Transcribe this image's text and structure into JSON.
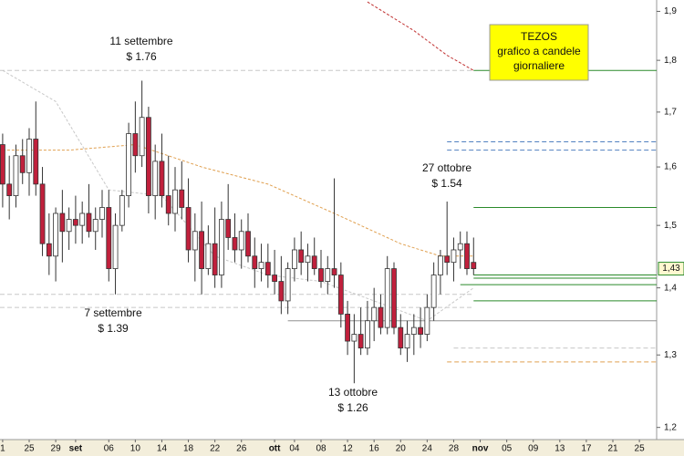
{
  "chart_data": {
    "type": "candlestick",
    "info_box": {
      "lines": [
        "TEZOS",
        "grafico a candele",
        "giornaliere"
      ]
    },
    "annotations": [
      {
        "lines": [
          "11 settembre",
          "$ 1.76"
        ]
      },
      {
        "lines": [
          "7 settembre",
          "$ 1.39"
        ]
      },
      {
        "lines": [
          "13 ottobre",
          "$ 1.26"
        ]
      },
      {
        "lines": [
          "27 ottobre",
          "$ 1.54"
        ]
      }
    ],
    "log_scale": true,
    "grid": false,
    "ylim": [
      1.184,
      1.924
    ],
    "yticks": [
      {
        "value": 1.2,
        "label": "1,2"
      },
      {
        "value": 1.3,
        "label": "1,3"
      },
      {
        "value": 1.4,
        "label": "1,4"
      },
      {
        "value": 1.5,
        "label": "1,5"
      },
      {
        "value": 1.6,
        "label": "1,6"
      },
      {
        "value": 1.7,
        "label": "1,7"
      },
      {
        "value": 1.8,
        "label": "1,8"
      },
      {
        "value": 1.9,
        "label": "1,9"
      }
    ],
    "xlim": [
      -0.4,
      98.6
    ],
    "xticks": [
      {
        "value": 0,
        "label": "1"
      },
      {
        "value": 4,
        "label": "25"
      },
      {
        "value": 8,
        "label": "29"
      },
      {
        "value": 11,
        "label": "set",
        "bold": true
      },
      {
        "value": 16,
        "label": "06"
      },
      {
        "value": 20,
        "label": "10"
      },
      {
        "value": 24,
        "label": "14"
      },
      {
        "value": 28,
        "label": "18"
      },
      {
        "value": 32,
        "label": "22"
      },
      {
        "value": 36,
        "label": "26"
      },
      {
        "value": 41,
        "label": "ott",
        "bold": true
      },
      {
        "value": 44,
        "label": "04"
      },
      {
        "value": 48,
        "label": "08"
      },
      {
        "value": 52,
        "label": "12"
      },
      {
        "value": 56,
        "label": "16"
      },
      {
        "value": 60,
        "label": "20"
      },
      {
        "value": 64,
        "label": "24"
      },
      {
        "value": 68,
        "label": "28"
      },
      {
        "value": 72,
        "label": "nov",
        "bold": true
      },
      {
        "value": 76,
        "label": "05"
      },
      {
        "value": 80,
        "label": "09"
      },
      {
        "value": 84,
        "label": "13"
      },
      {
        "value": 88,
        "label": "17"
      },
      {
        "value": 92,
        "label": "21"
      },
      {
        "value": 96,
        "label": "25"
      }
    ],
    "last_price": {
      "value": 1.43,
      "label": "1,43"
    },
    "up_color": "#ffffff",
    "down_color": "#c0203c",
    "candles": {
      "x": [
        0,
        1,
        2,
        3,
        4,
        5,
        6,
        7,
        8,
        9,
        10,
        11,
        12,
        13,
        14,
        15,
        16,
        17,
        18,
        19,
        20,
        21,
        22,
        23,
        24,
        25,
        26,
        27,
        28,
        29,
        30,
        31,
        32,
        33,
        34,
        35,
        36,
        37,
        38,
        39,
        40,
        41,
        42,
        43,
        44,
        45,
        46,
        47,
        48,
        49,
        50,
        51,
        52,
        53,
        54,
        55,
        56,
        57,
        58,
        59,
        60,
        61,
        62,
        63,
        64,
        65,
        66,
        67,
        68,
        69,
        70,
        71
      ],
      "open": [
        1.64,
        1.57,
        1.55,
        1.62,
        1.59,
        1.65,
        1.57,
        1.47,
        1.45,
        1.52,
        1.49,
        1.51,
        1.5,
        1.52,
        1.49,
        1.51,
        1.53,
        1.43,
        1.5,
        1.55,
        1.66,
        1.62,
        1.69,
        1.55,
        1.61,
        1.55,
        1.52,
        1.56,
        1.53,
        1.46,
        1.49,
        1.43,
        1.47,
        1.42,
        1.51,
        1.48,
        1.46,
        1.49,
        1.45,
        1.43,
        1.44,
        1.42,
        1.41,
        1.38,
        1.43,
        1.46,
        1.44,
        1.45,
        1.43,
        1.41,
        1.43,
        1.42,
        1.36,
        1.32,
        1.33,
        1.31,
        1.35,
        1.37,
        1.34,
        1.43,
        1.34,
        1.31,
        1.33,
        1.34,
        1.33,
        1.37,
        1.42,
        1.45,
        1.44,
        1.46,
        1.47,
        1.44
      ],
      "high": [
        1.66,
        1.62,
        1.64,
        1.65,
        1.67,
        1.72,
        1.6,
        1.52,
        1.53,
        1.56,
        1.53,
        1.55,
        1.54,
        1.57,
        1.53,
        1.56,
        1.56,
        1.52,
        1.56,
        1.68,
        1.72,
        1.76,
        1.71,
        1.64,
        1.66,
        1.62,
        1.6,
        1.61,
        1.58,
        1.52,
        1.54,
        1.5,
        1.53,
        1.54,
        1.57,
        1.52,
        1.51,
        1.52,
        1.48,
        1.47,
        1.47,
        1.46,
        1.45,
        1.44,
        1.48,
        1.49,
        1.47,
        1.48,
        1.46,
        1.45,
        1.58,
        1.44,
        1.38,
        1.36,
        1.37,
        1.38,
        1.4,
        1.39,
        1.45,
        1.44,
        1.36,
        1.35,
        1.36,
        1.37,
        1.39,
        1.44,
        1.46,
        1.54,
        1.48,
        1.49,
        1.49,
        1.48
      ],
      "low": [
        1.53,
        1.51,
        1.53,
        1.57,
        1.55,
        1.55,
        1.45,
        1.42,
        1.41,
        1.44,
        1.46,
        1.47,
        1.47,
        1.48,
        1.46,
        1.48,
        1.41,
        1.39,
        1.49,
        1.53,
        1.59,
        1.6,
        1.52,
        1.51,
        1.53,
        1.5,
        1.49,
        1.51,
        1.44,
        1.41,
        1.39,
        1.42,
        1.4,
        1.4,
        1.46,
        1.44,
        1.43,
        1.44,
        1.4,
        1.41,
        1.4,
        1.39,
        1.36,
        1.36,
        1.41,
        1.42,
        1.41,
        1.42,
        1.4,
        1.39,
        1.4,
        1.34,
        1.3,
        1.26,
        1.3,
        1.3,
        1.32,
        1.33,
        1.33,
        1.33,
        1.3,
        1.29,
        1.3,
        1.31,
        1.32,
        1.35,
        1.39,
        1.42,
        1.41,
        1.43,
        1.42,
        1.42
      ],
      "close": [
        1.57,
        1.55,
        1.62,
        1.59,
        1.65,
        1.57,
        1.47,
        1.45,
        1.52,
        1.49,
        1.51,
        1.5,
        1.52,
        1.49,
        1.51,
        1.53,
        1.43,
        1.5,
        1.55,
        1.66,
        1.62,
        1.69,
        1.55,
        1.61,
        1.55,
        1.52,
        1.56,
        1.53,
        1.46,
        1.49,
        1.43,
        1.47,
        1.42,
        1.51,
        1.48,
        1.46,
        1.49,
        1.45,
        1.43,
        1.44,
        1.42,
        1.41,
        1.38,
        1.43,
        1.46,
        1.44,
        1.45,
        1.43,
        1.41,
        1.43,
        1.42,
        1.36,
        1.32,
        1.33,
        1.31,
        1.35,
        1.37,
        1.34,
        1.43,
        1.34,
        1.31,
        1.33,
        1.34,
        1.33,
        1.37,
        1.42,
        1.45,
        1.44,
        1.46,
        1.47,
        1.43,
        1.43
      ]
    },
    "lines": [
      {
        "color": "#e0a050",
        "x": [
          0,
          10,
          20,
          30,
          40,
          50,
          60,
          66,
          71
        ],
        "values": [
          1.63,
          1.63,
          1.64,
          1.6,
          1.57,
          1.52,
          1.47,
          1.45,
          1.45
        ]
      },
      {
        "color": "#c8c8c8",
        "x": [
          0,
          8,
          16,
          24,
          32,
          40,
          48,
          56,
          64,
          71
        ],
        "values": [
          1.78,
          1.72,
          1.56,
          1.55,
          1.45,
          1.42,
          1.41,
          1.38,
          1.35,
          1.4
        ]
      },
      {
        "color": "#c03030",
        "x": [
          55,
          62,
          67,
          71
        ],
        "values": [
          1.92,
          1.86,
          1.81,
          1.78
        ]
      }
    ],
    "levels": [
      {
        "value": 1.78,
        "color": "#c8c8c8",
        "dashed": true,
        "from": -0.4,
        "to": 71
      },
      {
        "value": 1.78,
        "color": "#2a8a2a",
        "dashed": false,
        "from": 71,
        "to": 98.6
      },
      {
        "value": 1.645,
        "color": "#5080c0",
        "dashed": true,
        "from": 67,
        "to": 98.6
      },
      {
        "value": 1.63,
        "color": "#5080c0",
        "dashed": true,
        "from": 67,
        "to": 98.6
      },
      {
        "value": 1.53,
        "color": "#2a8a2a",
        "dashed": false,
        "from": 71,
        "to": 98.6
      },
      {
        "value": 1.42,
        "color": "#2a8a2a",
        "dashed": false,
        "from": 71,
        "to": 98.6
      },
      {
        "value": 1.415,
        "color": "#2a8a2a",
        "dashed": false,
        "from": 71,
        "to": 98.6
      },
      {
        "value": 1.405,
        "color": "#2a8a2a",
        "dashed": false,
        "from": 69,
        "to": 98.6
      },
      {
        "value": 1.38,
        "color": "#2a8a2a",
        "dashed": false,
        "from": 71,
        "to": 98.6
      },
      {
        "value": 1.39,
        "color": "#c8c8c8",
        "dashed": true,
        "from": -0.4,
        "to": 71
      },
      {
        "value": 1.37,
        "color": "#c8c8c8",
        "dashed": true,
        "from": -0.4,
        "to": 71
      },
      {
        "value": 1.35,
        "color": "#909090",
        "dashed": false,
        "from": 43,
        "to": 98.6
      },
      {
        "value": 1.31,
        "color": "#c8c8c8",
        "dashed": true,
        "from": 68,
        "to": 98.6
      },
      {
        "value": 1.29,
        "color": "#e0a050",
        "dashed": true,
        "from": 67,
        "to": 98.6
      }
    ]
  }
}
